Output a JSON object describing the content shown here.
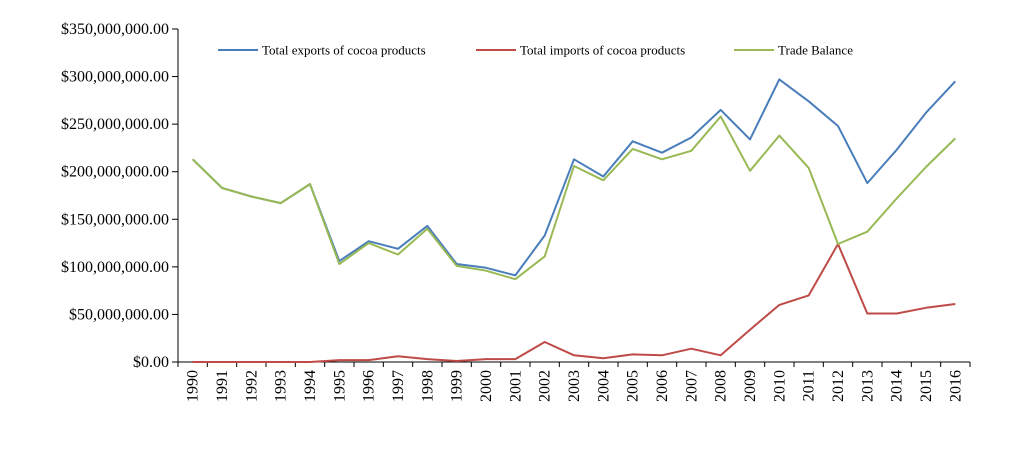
{
  "chart_data": {
    "type": "line",
    "title": "",
    "xlabel": "",
    "ylabel": "",
    "ylim": [
      0,
      350000000
    ],
    "y_ticks": [
      {
        "value": 0,
        "label": "$0.00"
      },
      {
        "value": 50000000,
        "label": "$50,000,000.00"
      },
      {
        "value": 100000000,
        "label": "$100,000,000.00"
      },
      {
        "value": 150000000,
        "label": "$150,000,000.00"
      },
      {
        "value": 200000000,
        "label": "$200,000,000.00"
      },
      {
        "value": 250000000,
        "label": "$250,000,000.00"
      },
      {
        "value": 300000000,
        "label": "$300,000,000.00"
      },
      {
        "value": 350000000,
        "label": "$350,000,000.00"
      }
    ],
    "categories": [
      "1990",
      "1991",
      "1992",
      "1993",
      "1994",
      "1995",
      "1996",
      "1997",
      "1998",
      "1999",
      "2000",
      "2001",
      "2002",
      "2003",
      "2004",
      "2005",
      "2006",
      "2007",
      "2008",
      "2009",
      "2010",
      "2011",
      "2012",
      "2013",
      "2014",
      "2015",
      "2016"
    ],
    "legend_position": "top",
    "series": [
      {
        "name": "Total exports of cocoa products",
        "color": "#4a7ebb",
        "values": [
          213000000,
          183000000,
          174000000,
          167000000,
          187000000,
          106000000,
          127000000,
          119000000,
          143000000,
          103000000,
          99000000,
          91000000,
          133000000,
          213000000,
          195000000,
          232000000,
          220000000,
          236000000,
          265000000,
          234000000,
          297000000,
          274000000,
          248000000,
          188000000,
          223000000,
          262000000,
          295000000
        ]
      },
      {
        "name": "Total imports of cocoa products",
        "color": "#be4b48",
        "values": [
          0,
          0,
          0,
          0,
          0,
          2000000,
          2000000,
          6000000,
          3000000,
          1000000,
          3000000,
          3000000,
          21000000,
          7000000,
          4000000,
          8000000,
          7000000,
          14000000,
          7000000,
          34000000,
          60000000,
          70000000,
          124000000,
          51000000,
          51000000,
          57000000,
          61000000
        ]
      },
      {
        "name": "Trade Balance",
        "color": "#98b954",
        "values": [
          213000000,
          183000000,
          174000000,
          167000000,
          187000000,
          103000000,
          125000000,
          113000000,
          140000000,
          101000000,
          96000000,
          87000000,
          111000000,
          206000000,
          191000000,
          224000000,
          213000000,
          222000000,
          258000000,
          201000000,
          238000000,
          204000000,
          124000000,
          137000000,
          172000000,
          205000000,
          235000000
        ]
      }
    ]
  }
}
